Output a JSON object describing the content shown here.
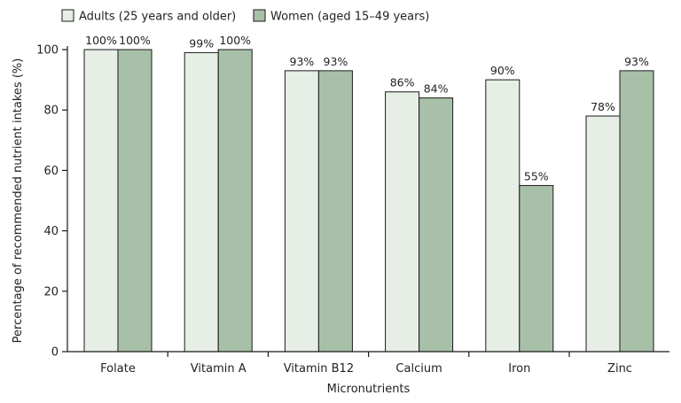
{
  "chart_data": {
    "type": "bar",
    "title": "",
    "xlabel": "Micronutrients",
    "ylabel": "Percentage of recommended nutrient intakes (%)",
    "ylim": [
      0,
      100
    ],
    "yticks": [
      0,
      20,
      40,
      60,
      80,
      100
    ],
    "categories": [
      "Folate",
      "Vitamin A",
      "Vitamin B12",
      "Calcium",
      "Iron",
      "Zinc"
    ],
    "series": [
      {
        "name": "Adults (25 years and older)",
        "color": "#e6eee6",
        "values": [
          100,
          99,
          93,
          86,
          90,
          78
        ],
        "labels": [
          "100%",
          "99%",
          "93%",
          "86%",
          "90%",
          "78%"
        ]
      },
      {
        "name": "Women (aged 15–49 years)",
        "color": "#a8c0a8",
        "values": [
          100,
          100,
          93,
          84,
          55,
          93
        ],
        "labels": [
          "100%",
          "100%",
          "93%",
          "84%",
          "55%",
          "93%"
        ]
      }
    ],
    "legend_position": "top",
    "grid": false
  }
}
